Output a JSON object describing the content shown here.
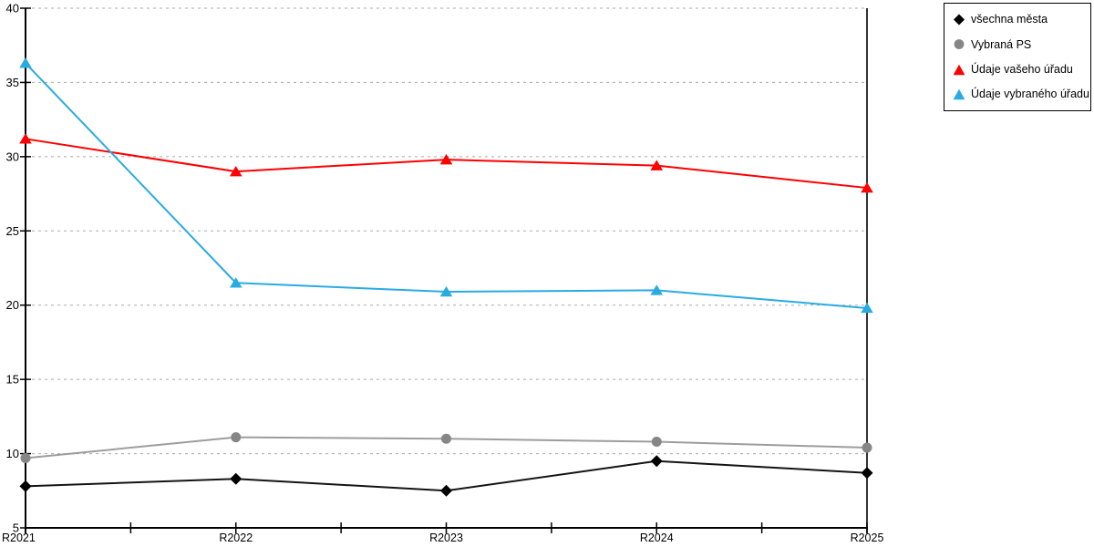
{
  "chart_data": {
    "type": "line",
    "title": "",
    "xlabel": "",
    "ylabel": "",
    "categories": [
      "R2021",
      "R2022",
      "R2023",
      "R2024",
      "R2025"
    ],
    "series": [
      {
        "name": "všechna města",
        "marker": "diamond",
        "color": "#000000",
        "line_color": "#141414",
        "values": [
          7.8,
          8.3,
          7.5,
          9.5,
          8.7
        ]
      },
      {
        "name": "Vybraná PS",
        "marker": "circle",
        "color": "#868686",
        "line_color": "#9d9d9d",
        "values": [
          9.7,
          11.1,
          11.0,
          10.8,
          10.4
        ]
      },
      {
        "name": "Údaje vašeho úřadu",
        "marker": "triangle",
        "color": "#fe0000",
        "line_color": "#fe0000",
        "values": [
          31.2,
          29.0,
          29.8,
          29.4,
          27.9
        ]
      },
      {
        "name": "Údaje vybraného úřadu",
        "marker": "triangle",
        "color": "#29abe2",
        "line_color": "#29abe2",
        "values": [
          36.3,
          21.5,
          20.9,
          21.0,
          19.8
        ]
      }
    ],
    "ylim": [
      5,
      40
    ],
    "yticks": [
      5,
      10,
      15,
      20,
      25,
      30,
      35,
      40
    ],
    "grid": "horizontal-dashed",
    "gridline_color": "#ababab",
    "axis_color": "#000000",
    "background": "#ffffff",
    "legend_position": "outside-top-right"
  }
}
